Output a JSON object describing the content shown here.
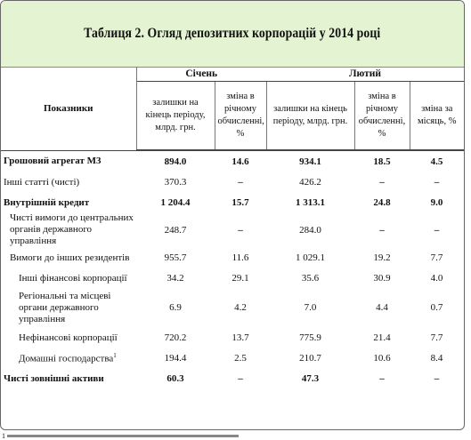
{
  "table": {
    "title": "Таблиця 2. Огляд депозитних корпорацій у 2014 році",
    "row_header": "Показники",
    "months": [
      "Січень",
      "Лютий"
    ],
    "col_headers": [
      "залишки на кінець періоду, млрд. грн.",
      "зміна в річному обчисленні, %",
      "залишки на кінець періоду, млрд. грн.",
      "зміна в річному обчисленні, %",
      "зміна за місяць, %"
    ],
    "rows": [
      {
        "label": "Грошовий агрегат М3",
        "jan_bal": "894.0",
        "jan_chg": "14.6",
        "feb_bal": "934.1",
        "feb_chg": "18.5",
        "feb_month": "4.5"
      },
      {
        "label": "Інші статті (чисті)",
        "jan_bal": "370.3",
        "jan_chg": "–",
        "feb_bal": "426.2",
        "feb_chg": "–",
        "feb_month": "–"
      },
      {
        "label": "Внутрішній кредит",
        "jan_bal": "1 204.4",
        "jan_chg": "15.7",
        "feb_bal": "1 313.1",
        "feb_chg": "24.8",
        "feb_month": "9.0"
      },
      {
        "label": "Чисті вимоги до центральних органів державного управління",
        "jan_bal": "248.7",
        "jan_chg": "–",
        "feb_bal": "284.0",
        "feb_chg": "–",
        "feb_month": "–"
      },
      {
        "label": "Вимоги до інших резидентів",
        "jan_bal": "955.7",
        "jan_chg": "11.6",
        "feb_bal": "1 029.1",
        "feb_chg": "19.2",
        "feb_month": "7.7"
      },
      {
        "label": "Інші фінансові корпорації",
        "jan_bal": "34.2",
        "jan_chg": "29.1",
        "feb_bal": "35.6",
        "feb_chg": "30.9",
        "feb_month": "4.0"
      },
      {
        "label": "Регіональні та місцеві органи державного управління",
        "jan_bal": "6.9",
        "jan_chg": "4.2",
        "feb_bal": "7.0",
        "feb_chg": "4.4",
        "feb_month": "0.7"
      },
      {
        "label": "Нефінансові корпорації",
        "jan_bal": "720.2",
        "jan_chg": "13.7",
        "feb_bal": "775.9",
        "feb_chg": "21.4",
        "feb_month": "7.7"
      },
      {
        "label": "Домашні господарства",
        "label_sup": "1",
        "jan_bal": "194.4",
        "jan_chg": "2.5",
        "feb_bal": "210.7",
        "feb_chg": "10.6",
        "feb_month": "8.4"
      },
      {
        "label": "Чисті зовнішні активи",
        "jan_bal": "60.3",
        "jan_chg": "–",
        "feb_bal": "47.3",
        "feb_chg": "–",
        "feb_month": "–"
      }
    ],
    "footnote_marker": "1"
  }
}
